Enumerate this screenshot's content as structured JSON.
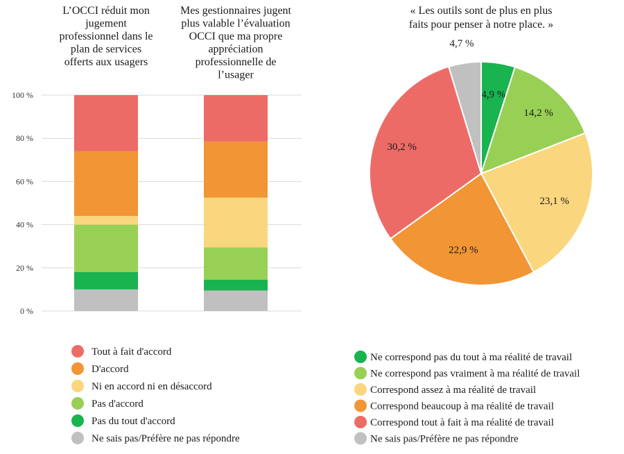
{
  "colors": {
    "tout_a_fait": "#ed6b66",
    "accord": "#f19535",
    "ni": "#fad77e",
    "pas_accord": "#98d056",
    "pas_du_tout": "#19b350",
    "ne_sais_pas": "#c0c0c0",
    "grid": "#d9d9d9"
  },
  "chart_data": [
    {
      "type": "bar",
      "stacked": true,
      "categories": [
        "L’OCCI réduit mon jugement professionnel dans le plan de services offerts aux usagers",
        "Mes gestionnaires jugent plus valable l’évaluation OCCI que ma propre appréciation professionnelle de l’usager"
      ],
      "category_title_lines": [
        [
          "L’OCCI réduit mon",
          "jugement",
          "professionnel dans le",
          "plan de services",
          "offerts aux usagers"
        ],
        [
          "Mes gestionnaires jugent",
          "plus valable l’évaluation",
          "OCCI que ma propre",
          "appréciation",
          "professionnelle de",
          "l’usager"
        ]
      ],
      "yticks": [
        "0 %",
        "20 %",
        "40 %",
        "60 %",
        "80 %",
        "100 %"
      ],
      "ylim": [
        0,
        100
      ],
      "grid": true,
      "series": [
        {
          "name": "Ne sais pas/Préfère ne pas répondre",
          "values": [
            10,
            9.5
          ]
        },
        {
          "name": "Pas du tout d'accord",
          "values": [
            8,
            5
          ]
        },
        {
          "name": "Pas d'accord",
          "values": [
            22,
            15
          ]
        },
        {
          "name": "Ni en accord ni en désaccord",
          "values": [
            4,
            23
          ]
        },
        {
          "name": "D'accord",
          "values": [
            30,
            26
          ]
        },
        {
          "name": "Tout à fait d'accord",
          "values": [
            26,
            21.5
          ]
        }
      ],
      "legend": [
        "Tout à fait d'accord",
        "D'accord",
        "Ni en accord ni en désaccord",
        "Pas d'accord",
        "Pas du tout d'accord",
        "Ne sais pas/Préfère ne pas répondre"
      ],
      "legend_position": "bottom"
    },
    {
      "type": "pie",
      "title_lines": [
        "« Les outils sont de plus en plus",
        "faits pour penser à notre place. »"
      ],
      "slices": [
        {
          "name": "Ne correspond pas du tout à ma réalité de travail",
          "value": 4.9,
          "label": "4,9 %"
        },
        {
          "name": "Ne correspond pas vraiment à ma réalité de travail",
          "value": 14.2,
          "label": "14,2 %"
        },
        {
          "name": "Correspond assez à ma réalité de travail",
          "value": 23.1,
          "label": "23,1 %"
        },
        {
          "name": "Correspond beaucoup à ma réalité de travail",
          "value": 22.9,
          "label": "22,9 %"
        },
        {
          "name": "Correspond tout à fait à ma réalité de travail",
          "value": 30.2,
          "label": "30,2 %"
        },
        {
          "name": "Ne sais pas/Préfère ne pas répondre",
          "value": 4.7,
          "label": "4,7 %"
        }
      ],
      "legend": [
        "Ne correspond pas du tout à ma réalité de travail",
        "Ne correspond pas vraiment à ma réalité de travail",
        "Correspond assez à ma réalité de travail",
        "Correspond beaucoup à ma réalité de travail",
        "Correspond tout à fait à ma réalité de travail",
        "Ne sais pas/Préfère ne pas répondre"
      ],
      "legend_position": "bottom"
    }
  ]
}
